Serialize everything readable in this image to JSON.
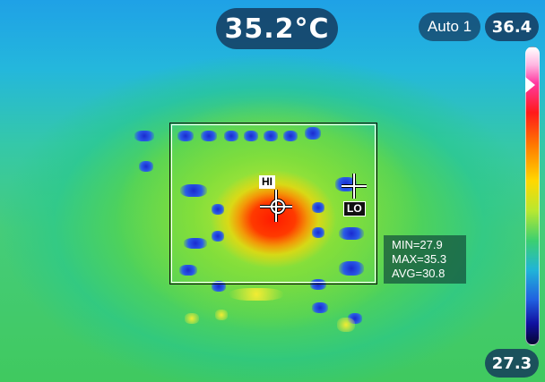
{
  "readout": {
    "center_temp": "35.2°C",
    "mode": "Auto 1",
    "scale_max": "36.4",
    "scale_min": "27.3"
  },
  "markers": {
    "hi_label": "HI",
    "lo_label": "LO"
  },
  "roi_stats": {
    "min": "MIN=27.9",
    "max": "MAX=35.3",
    "avg": "AVG=30.8"
  },
  "icons": [
    "hot-spot-crosshair-icon",
    "cold-spot-crosshair-icon",
    "scale-pointer-icon"
  ],
  "colors": {
    "pill_background": "#14375a",
    "hot_spot": "#ff1a00",
    "stats_background": "#14503c"
  }
}
